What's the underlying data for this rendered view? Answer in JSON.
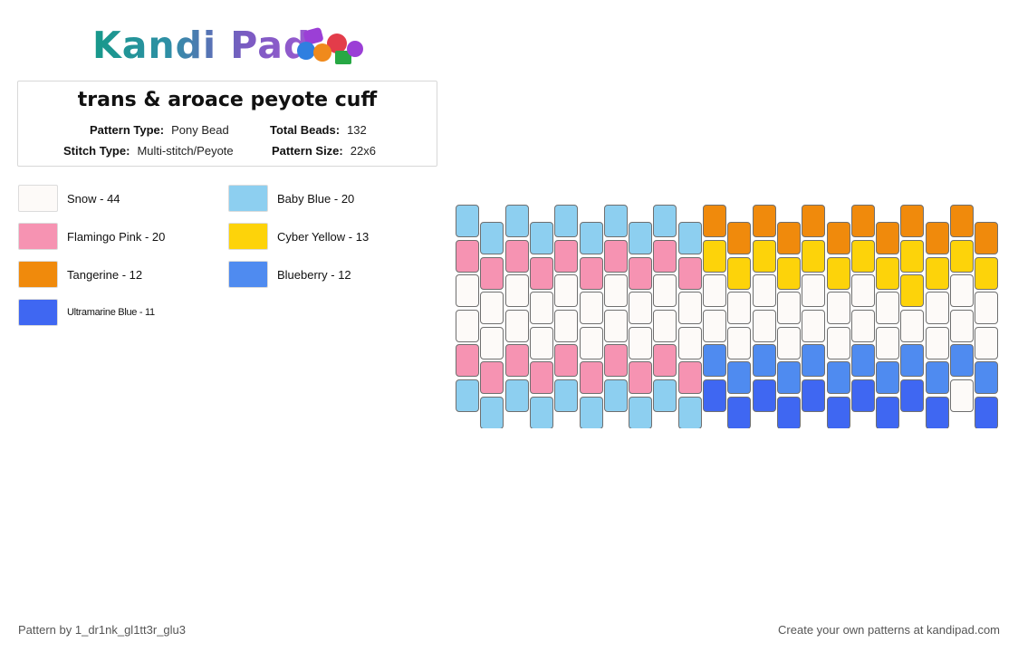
{
  "logo": {
    "text": "Kandi Pad",
    "bead_colors": [
      "#9b3fd6",
      "#2f7fe0",
      "#e33c4a",
      "#f08a1c",
      "#27a844"
    ]
  },
  "pattern": {
    "title": "trans & aroace peyote cuff",
    "meta": {
      "pattern_type_label": "Pattern Type:",
      "pattern_type": "Pony Bead",
      "total_beads_label": "Total Beads:",
      "total_beads": "132",
      "stitch_type_label": "Stitch Type:",
      "stitch_type": "Multi-stitch/Peyote",
      "pattern_size_label": "Pattern Size:",
      "pattern_size": "22x6"
    }
  },
  "legend": [
    {
      "label": "Snow - 44",
      "color": "#fdfaf8"
    },
    {
      "label": "Baby Blue - 20",
      "color": "#8dcff0"
    },
    {
      "label": "Flamingo Pink - 20",
      "color": "#f693b2"
    },
    {
      "label": "Cyber Yellow - 13",
      "color": "#fdd30a"
    },
    {
      "label": "Tangerine - 12",
      "color": "#f08a0c"
    },
    {
      "label": "Blueberry - 12",
      "color": "#4f8bf0"
    },
    {
      "label": "Ultramarine Blue - 11",
      "color": "#3f67f2"
    }
  ],
  "bead_grid": {
    "columns": [
      [
        "baby_blue",
        "flamingo",
        "snow",
        "snow",
        "flamingo",
        "baby_blue"
      ],
      [
        "baby_blue",
        "flamingo",
        "snow",
        "snow",
        "flamingo",
        "baby_blue"
      ],
      [
        "baby_blue",
        "flamingo",
        "snow",
        "snow",
        "flamingo",
        "baby_blue"
      ],
      [
        "baby_blue",
        "flamingo",
        "snow",
        "snow",
        "flamingo",
        "baby_blue"
      ],
      [
        "baby_blue",
        "flamingo",
        "snow",
        "snow",
        "flamingo",
        "baby_blue"
      ],
      [
        "baby_blue",
        "flamingo",
        "snow",
        "snow",
        "flamingo",
        "baby_blue"
      ],
      [
        "baby_blue",
        "flamingo",
        "snow",
        "snow",
        "flamingo",
        "baby_blue"
      ],
      [
        "baby_blue",
        "flamingo",
        "snow",
        "snow",
        "flamingo",
        "baby_blue"
      ],
      [
        "baby_blue",
        "flamingo",
        "snow",
        "snow",
        "flamingo",
        "baby_blue"
      ],
      [
        "baby_blue",
        "flamingo",
        "snow",
        "snow",
        "flamingo",
        "baby_blue"
      ],
      [
        "tangerine",
        "yellow",
        "snow",
        "snow",
        "blueberry",
        "ultramarine"
      ],
      [
        "tangerine",
        "yellow",
        "snow",
        "snow",
        "blueberry",
        "ultramarine"
      ],
      [
        "tangerine",
        "yellow",
        "snow",
        "snow",
        "blueberry",
        "ultramarine"
      ],
      [
        "tangerine",
        "yellow",
        "snow",
        "snow",
        "blueberry",
        "ultramarine"
      ],
      [
        "tangerine",
        "yellow",
        "snow",
        "snow",
        "blueberry",
        "ultramarine"
      ],
      [
        "tangerine",
        "yellow",
        "snow",
        "snow",
        "blueberry",
        "ultramarine"
      ],
      [
        "tangerine",
        "yellow",
        "snow",
        "snow",
        "blueberry",
        "ultramarine"
      ],
      [
        "tangerine",
        "yellow",
        "snow",
        "snow",
        "blueberry",
        "ultramarine"
      ],
      [
        "tangerine",
        "yellow",
        "yellow",
        "snow",
        "blueberry",
        "ultramarine"
      ],
      [
        "tangerine",
        "yellow",
        "snow",
        "snow",
        "blueberry",
        "ultramarine"
      ],
      [
        "tangerine",
        "yellow",
        "snow",
        "snow",
        "blueberry",
        "snow"
      ],
      [
        "tangerine",
        "yellow",
        "snow",
        "snow",
        "blueberry",
        "ultramarine"
      ]
    ],
    "colors": {
      "snow": "#fdfaf8",
      "baby_blue": "#8dcff0",
      "flamingo": "#f693b2",
      "yellow": "#fdd30a",
      "tangerine": "#f08a0c",
      "blueberry": "#4f8bf0",
      "ultramarine": "#3f67f2"
    }
  },
  "footer": {
    "author": "Pattern by 1_dr1nk_gl1tt3r_glu3",
    "cta": "Create your own patterns at kandipad.com"
  }
}
